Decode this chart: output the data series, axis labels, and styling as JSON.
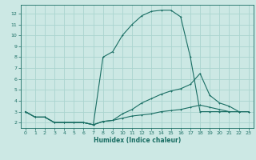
{
  "title": "",
  "xlabel": "Humidex (Indice chaleur)",
  "bg_color": "#cce8e4",
  "grid_color": "#aad4cf",
  "line_color": "#1a6e64",
  "xlim": [
    -0.5,
    23.5
  ],
  "ylim": [
    1.5,
    12.8
  ],
  "xticks": [
    0,
    1,
    2,
    3,
    4,
    5,
    6,
    7,
    8,
    9,
    10,
    11,
    12,
    13,
    14,
    15,
    16,
    17,
    18,
    19,
    20,
    21,
    22,
    23
  ],
  "yticks": [
    2,
    3,
    4,
    5,
    6,
    7,
    8,
    9,
    10,
    11,
    12
  ],
  "line1_x": [
    0,
    1,
    2,
    3,
    4,
    5,
    6,
    7,
    8,
    9,
    10,
    11,
    12,
    13,
    14,
    15,
    16,
    17,
    18,
    19,
    20,
    21,
    22,
    23
  ],
  "line1_y": [
    3.0,
    2.5,
    2.5,
    2.0,
    2.0,
    2.0,
    2.0,
    1.8,
    8.0,
    8.5,
    10.0,
    11.0,
    11.8,
    12.2,
    12.3,
    12.3,
    11.7,
    8.0,
    3.0,
    3.0,
    3.0,
    3.0,
    3.0,
    3.0
  ],
  "line2_x": [
    0,
    1,
    2,
    3,
    4,
    5,
    6,
    7,
    8,
    9,
    10,
    11,
    12,
    13,
    14,
    15,
    16,
    17,
    18,
    19,
    20,
    21,
    22,
    23
  ],
  "line2_y": [
    3.0,
    2.5,
    2.5,
    2.0,
    2.0,
    2.0,
    2.0,
    1.8,
    2.1,
    2.2,
    2.8,
    3.2,
    3.8,
    4.2,
    4.6,
    4.9,
    5.1,
    5.5,
    6.5,
    4.5,
    3.8,
    3.5,
    3.0,
    3.0
  ],
  "line3_x": [
    0,
    1,
    2,
    3,
    4,
    5,
    6,
    7,
    8,
    9,
    10,
    11,
    12,
    13,
    14,
    15,
    16,
    17,
    18,
    19,
    20,
    21,
    22,
    23
  ],
  "line3_y": [
    3.0,
    2.5,
    2.5,
    2.0,
    2.0,
    2.0,
    2.0,
    1.8,
    2.1,
    2.2,
    2.4,
    2.6,
    2.7,
    2.8,
    3.0,
    3.1,
    3.2,
    3.4,
    3.6,
    3.4,
    3.2,
    3.0,
    3.0,
    3.0
  ]
}
